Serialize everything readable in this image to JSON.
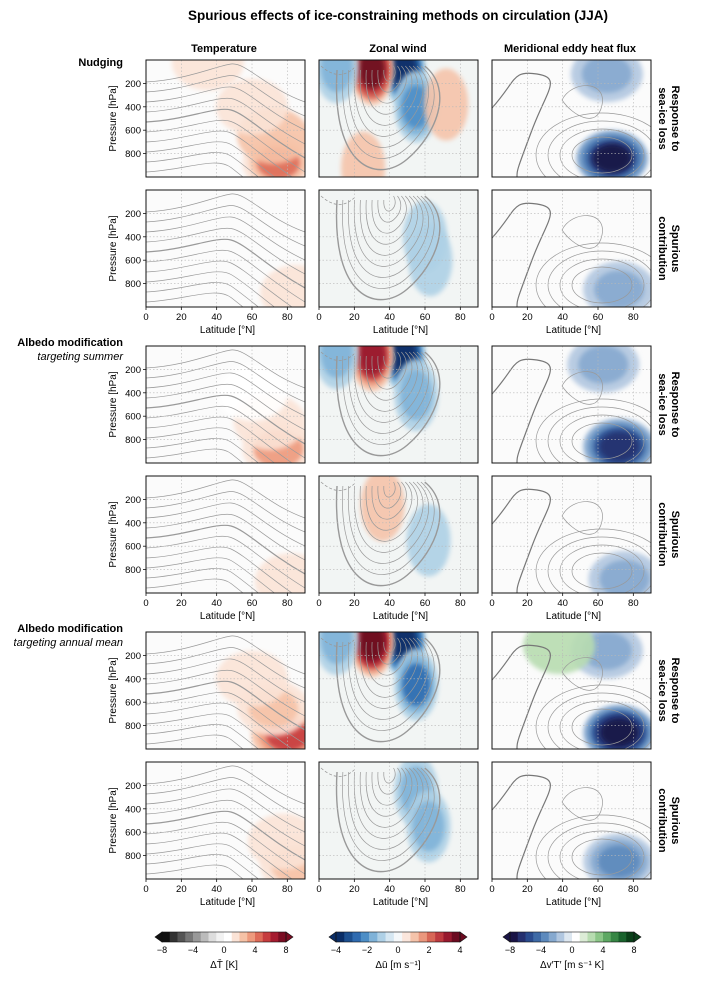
{
  "title": "Spurious effects of ice-constraining methods on circulation (JJA)",
  "columns": [
    "Temperature",
    "Zonal wind",
    "Meridional eddy heat flux"
  ],
  "row_labels": [
    {
      "line1": "Response to",
      "line2": "sea-ice loss"
    },
    {
      "line1": "Spurious",
      "line2": "contribution"
    }
  ],
  "groups": [
    {
      "name": "Nudging",
      "sub": ""
    },
    {
      "name": "Albedo modification",
      "sub": "targeting summer"
    },
    {
      "name": "Albedo modification",
      "sub": "targeting annual mean"
    }
  ],
  "axes": {
    "ylabel": "Pressure  [hPa]",
    "xlabel": "Latitude  [°N]",
    "yticks": [
      "200",
      "400",
      "600",
      "800"
    ],
    "xticks": [
      "0",
      "20",
      "40",
      "60",
      "80"
    ]
  },
  "colorbars": [
    {
      "label": "ΔT̄  [K]",
      "ticks": [
        "−8",
        "−4",
        "0",
        "4",
        "8"
      ],
      "colors": [
        "#111111",
        "#333333",
        "#555555",
        "#777777",
        "#999999",
        "#bbbbbb",
        "#dddddd",
        "#f2f2f2",
        "#ffffff",
        "#fbe3d6",
        "#f6c2a6",
        "#ee9a7d",
        "#de6b58",
        "#c63c3e",
        "#a51b2f",
        "#7a0c22"
      ]
    },
    {
      "label": "Δū  [m s⁻¹]",
      "ticks": [
        "−4",
        "−2",
        "0",
        "2",
        "4"
      ],
      "colors": [
        "#0a2d66",
        "#1c4f8f",
        "#2f6bb0",
        "#4d8ec6",
        "#7fb2d8",
        "#aed0e6",
        "#d6e7f2",
        "#f5f8fa",
        "#fbe6dc",
        "#f5c3aa",
        "#ea977d",
        "#d76656",
        "#bd3a3f",
        "#98192e",
        "#6b0a20"
      ]
    },
    {
      "label": "Δv′T′  [m s⁻¹ K]",
      "ticks": [
        "−8",
        "−4",
        "0",
        "4",
        "8"
      ],
      "colors": [
        "#1a1446",
        "#25306f",
        "#2a4b8e",
        "#3e6aa6",
        "#5d8abd",
        "#86a9cf",
        "#b1c7e0",
        "#dde7f0",
        "#ffffff",
        "#dcecd6",
        "#b7dcb0",
        "#8cc688",
        "#5ea863",
        "#368644",
        "#19632d",
        "#0a4019"
      ]
    }
  ],
  "chart_data": {
    "type": "contour-panels",
    "description_axes": {
      "x_range_degN": [
        0,
        90
      ],
      "y_range_hPa": [
        1000,
        0
      ]
    },
    "panels": [
      {
        "group": "Nudging",
        "row": "Response to sea-ice loss",
        "column": "Temperature",
        "blobs": [
          {
            "lat": 75,
            "p": 880,
            "value": 4.0
          },
          {
            "lat": 72,
            "p": 650,
            "value": 2.0
          },
          {
            "lat": 60,
            "p": 400,
            "value": 1.0
          },
          {
            "lat": 35,
            "p": 20,
            "value": 1.0
          }
        ]
      },
      {
        "group": "Nudging",
        "row": "Response to sea-ice loss",
        "column": "Zonal wind",
        "blobs": [
          {
            "lat": 48,
            "p": 80,
            "value": -4.0
          },
          {
            "lat": 30,
            "p": 80,
            "value": 3.5
          },
          {
            "lat": 55,
            "p": 400,
            "value": -2.0
          },
          {
            "lat": 10,
            "p": 60,
            "value": -1.5
          },
          {
            "lat": 25,
            "p": 920,
            "value": 0.8
          },
          {
            "lat": 72,
            "p": 380,
            "value": 0.8
          }
        ]
      },
      {
        "group": "Nudging",
        "row": "Response to sea-ice loss",
        "column": "Meridional eddy heat flux",
        "blobs": [
          {
            "lat": 68,
            "p": 840,
            "value": -7.5
          },
          {
            "lat": 65,
            "p": 120,
            "value": -2.5
          }
        ]
      },
      {
        "group": "Nudging",
        "row": "Spurious contribution",
        "column": "Temperature",
        "blobs": [
          {
            "lat": 85,
            "p": 880,
            "value": 1.5
          }
        ]
      },
      {
        "group": "Nudging",
        "row": "Spurious contribution",
        "column": "Zonal wind",
        "blobs": [
          {
            "lat": 60,
            "p": 400,
            "value": -1.0
          },
          {
            "lat": 63,
            "p": 600,
            "value": -1.0
          }
        ]
      },
      {
        "group": "Nudging",
        "row": "Spurious contribution",
        "column": "Meridional eddy heat flux",
        "blobs": [
          {
            "lat": 72,
            "p": 850,
            "value": -3.0
          }
        ]
      },
      {
        "group": "Albedo modification targeting summer",
        "row": "Response to sea-ice loss",
        "column": "Temperature",
        "blobs": [
          {
            "lat": 75,
            "p": 880,
            "value": 3.0
          },
          {
            "lat": 70,
            "p": 650,
            "value": 1.6
          },
          {
            "lat": 60,
            "p": 400,
            "value": 0.8
          }
        ]
      },
      {
        "group": "Albedo modification targeting summer",
        "row": "Response to sea-ice loss",
        "column": "Zonal wind",
        "blobs": [
          {
            "lat": 48,
            "p": 80,
            "value": -3.8
          },
          {
            "lat": 30,
            "p": 80,
            "value": 3.2
          },
          {
            "lat": 55,
            "p": 420,
            "value": -1.8
          },
          {
            "lat": 10,
            "p": 60,
            "value": -1.5
          }
        ]
      },
      {
        "group": "Albedo modification targeting summer",
        "row": "Response to sea-ice loss",
        "column": "Meridional eddy heat flux",
        "blobs": [
          {
            "lat": 72,
            "p": 860,
            "value": -7.0
          },
          {
            "lat": 63,
            "p": 160,
            "value": -2.5
          }
        ]
      },
      {
        "group": "Albedo modification targeting summer",
        "row": "Spurious contribution",
        "column": "Temperature",
        "blobs": [
          {
            "lat": 82,
            "p": 900,
            "value": 1.2
          }
        ]
      },
      {
        "group": "Albedo modification targeting summer",
        "row": "Spurious contribution",
        "column": "Zonal wind",
        "blobs": [
          {
            "lat": 36,
            "p": 250,
            "value": 1.0
          },
          {
            "lat": 62,
            "p": 550,
            "value": -1.0
          }
        ]
      },
      {
        "group": "Albedo modification targeting summer",
        "row": "Spurious contribution",
        "column": "Meridional eddy heat flux",
        "blobs": [
          {
            "lat": 75,
            "p": 880,
            "value": -3.0
          }
        ]
      },
      {
        "group": "Albedo modification targeting annual mean",
        "row": "Response to sea-ice loss",
        "column": "Temperature",
        "blobs": [
          {
            "lat": 80,
            "p": 880,
            "value": 5.0
          },
          {
            "lat": 72,
            "p": 650,
            "value": 2.5
          },
          {
            "lat": 60,
            "p": 400,
            "value": 1.2
          }
        ]
      },
      {
        "group": "Albedo modification targeting annual mean",
        "row": "Response to sea-ice loss",
        "column": "Zonal wind",
        "blobs": [
          {
            "lat": 48,
            "p": 80,
            "value": -4.2
          },
          {
            "lat": 30,
            "p": 80,
            "value": 4.0
          },
          {
            "lat": 55,
            "p": 450,
            "value": -2.5
          },
          {
            "lat": 10,
            "p": 60,
            "value": -1.8
          }
        ]
      },
      {
        "group": "Albedo modification targeting annual mean",
        "row": "Response to sea-ice loss",
        "column": "Meridional eddy heat flux",
        "blobs": [
          {
            "lat": 72,
            "p": 860,
            "value": -8.0
          },
          {
            "lat": 65,
            "p": 160,
            "value": -2.5
          },
          {
            "lat": 38,
            "p": 120,
            "value": 2.0
          }
        ]
      },
      {
        "group": "Albedo modification targeting annual mean",
        "row": "Spurious contribution",
        "column": "Temperature",
        "blobs": [
          {
            "lat": 85,
            "p": 880,
            "value": 2.5
          },
          {
            "lat": 78,
            "p": 680,
            "value": 1.0
          }
        ]
      },
      {
        "group": "Albedo modification targeting annual mean",
        "row": "Spurious contribution",
        "column": "Zonal wind",
        "blobs": [
          {
            "lat": 55,
            "p": 250,
            "value": -1.5
          },
          {
            "lat": 62,
            "p": 550,
            "value": -1.5
          }
        ]
      },
      {
        "group": "Albedo modification targeting annual mean",
        "row": "Spurious contribution",
        "column": "Meridional eddy heat flux",
        "blobs": [
          {
            "lat": 72,
            "p": 850,
            "value": -4.0
          }
        ]
      }
    ]
  }
}
